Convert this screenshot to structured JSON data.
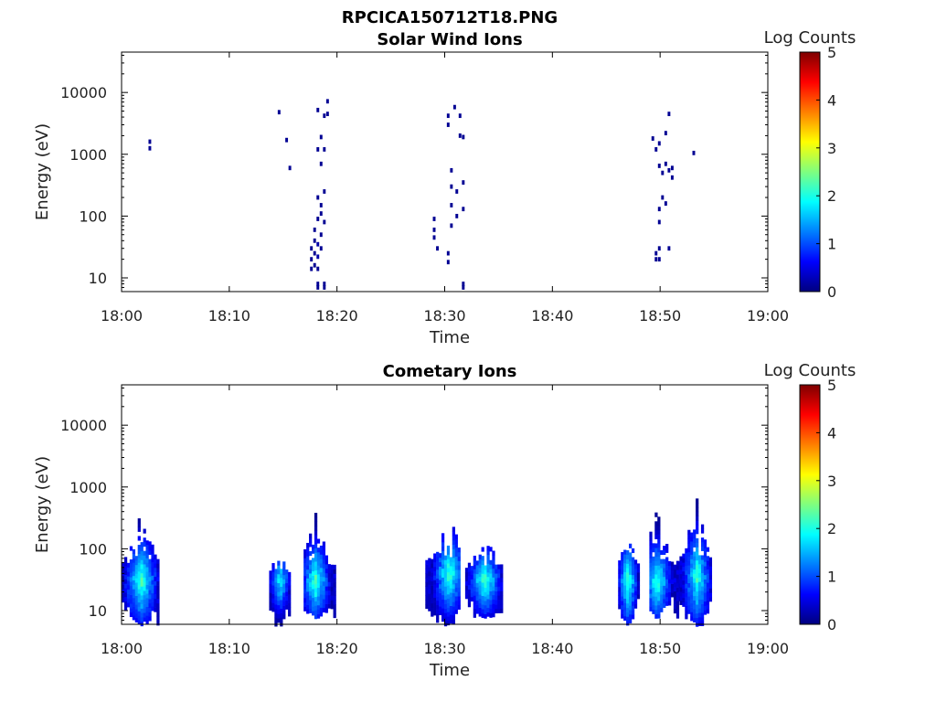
{
  "figure": {
    "title": "RPCICA150712T18.PNG"
  },
  "colorscale": {
    "stops": [
      "#00007f",
      "#0000ff",
      "#007fff",
      "#00ffff",
      "#7fff7f",
      "#ffff00",
      "#ff7f00",
      "#ff0000",
      "#7f0000"
    ]
  },
  "chart_data": [
    {
      "type": "heatmap",
      "title": "Solar Wind Ions",
      "xlabel": "Time",
      "ylabel": "Energy (eV)",
      "x_ticks": [
        "18:00",
        "18:10",
        "18:20",
        "18:30",
        "18:40",
        "18:50",
        "19:00"
      ],
      "xlim": [
        "18:00",
        "19:00"
      ],
      "y_scale": "log",
      "y_ticks": [
        "10",
        "100",
        "1000",
        "10000"
      ],
      "ylim": [
        6,
        45000
      ],
      "colorbar": {
        "label": "Log Counts",
        "ticks": [
          "0",
          "1",
          "2",
          "3",
          "4",
          "5"
        ],
        "range": [
          0,
          5
        ]
      },
      "grid": false,
      "cells": [
        [
          "18:02.5",
          1600,
          0.1
        ],
        [
          "18:02.5",
          1250,
          0.1
        ],
        [
          "18:14.5",
          4800,
          0.1
        ],
        [
          "18:15.2",
          1700,
          0.1
        ],
        [
          "18:15.5",
          600,
          0.1
        ],
        [
          "18:17.5",
          30,
          0.1
        ],
        [
          "18:17.5",
          20,
          0.1
        ],
        [
          "18:17.5",
          14,
          0.1
        ],
        [
          "18:17.8",
          40,
          0.1
        ],
        [
          "18:17.8",
          25,
          0.1
        ],
        [
          "18:17.8",
          16,
          0.1
        ],
        [
          "18:17.8",
          60,
          0.1
        ],
        [
          "18:18.1",
          35,
          0.2
        ],
        [
          "18:18.1",
          22,
          0.2
        ],
        [
          "18:18.1",
          14,
          0.1
        ],
        [
          "18:18.1",
          90,
          0.1
        ],
        [
          "18:18.1",
          200,
          0.1
        ],
        [
          "18:18.1",
          1200,
          0.1
        ],
        [
          "18:18.1",
          5200,
          0.1
        ],
        [
          "18:18.1",
          8,
          0.1
        ],
        [
          "18:18.1",
          7,
          0.1
        ],
        [
          "18:18.4",
          50,
          0.1
        ],
        [
          "18:18.4",
          30,
          0.1
        ],
        [
          "18:18.4",
          110,
          0.1
        ],
        [
          "18:18.4",
          150,
          0.1
        ],
        [
          "18:18.4",
          700,
          0.1
        ],
        [
          "18:18.4",
          1900,
          0.1
        ],
        [
          "18:18.7",
          80,
          0.1
        ],
        [
          "18:18.7",
          250,
          0.1
        ],
        [
          "18:18.7",
          1200,
          0.1
        ],
        [
          "18:18.7",
          4200,
          0.1
        ],
        [
          "18:18.7",
          8,
          0.1
        ],
        [
          "18:18.7",
          7,
          0.1
        ],
        [
          "18:19.0",
          7200,
          0.1
        ],
        [
          "18:19.0",
          4500,
          0.1
        ],
        [
          "18:28.9",
          90,
          0.1
        ],
        [
          "18:28.9",
          60,
          0.1
        ],
        [
          "18:28.9",
          45,
          0.1
        ],
        [
          "18:29.2",
          30,
          0.1
        ],
        [
          "18:30.2",
          25,
          0.1
        ],
        [
          "18:30.2",
          18,
          0.1
        ],
        [
          "18:30.2",
          3000,
          0.1
        ],
        [
          "18:30.2",
          4200,
          0.1
        ],
        [
          "18:30.5",
          70,
          0.1
        ],
        [
          "18:30.5",
          150,
          0.1
        ],
        [
          "18:30.5",
          300,
          0.1
        ],
        [
          "18:30.5",
          550,
          0.1
        ],
        [
          "18:30.8",
          5800,
          0.1
        ],
        [
          "18:31.0",
          100,
          0.1
        ],
        [
          "18:31.0",
          250,
          0.1
        ],
        [
          "18:31.3",
          2000,
          0.1
        ],
        [
          "18:31.3",
          4200,
          0.1
        ],
        [
          "18:31.6",
          8,
          0.1
        ],
        [
          "18:31.6",
          7,
          0.1
        ],
        [
          "18:31.6",
          130,
          0.1
        ],
        [
          "18:31.6",
          350,
          0.1
        ],
        [
          "18:31.6",
          1900,
          0.1
        ],
        [
          "18:49.2",
          1800,
          0.1
        ],
        [
          "18:49.5",
          20,
          0.1
        ],
        [
          "18:49.5",
          25,
          0.1
        ],
        [
          "18:49.5",
          1200,
          0.1
        ],
        [
          "18:49.8",
          30,
          0.1
        ],
        [
          "18:49.8",
          20,
          0.1
        ],
        [
          "18:49.8",
          80,
          0.1
        ],
        [
          "18:49.8",
          130,
          0.1
        ],
        [
          "18:49.8",
          650,
          0.1
        ],
        [
          "18:49.8",
          1500,
          0.1
        ],
        [
          "18:50.1",
          200,
          0.1
        ],
        [
          "18:50.1",
          500,
          0.1
        ],
        [
          "18:50.4",
          160,
          0.1
        ],
        [
          "18:50.4",
          2200,
          0.1
        ],
        [
          "18:50.4",
          700,
          0.1
        ],
        [
          "18:50.7",
          30,
          0.1
        ],
        [
          "18:50.7",
          550,
          0.1
        ],
        [
          "18:50.7",
          4500,
          0.1
        ],
        [
          "18:51.0",
          600,
          0.1
        ],
        [
          "18:51.0",
          420,
          0.1
        ],
        [
          "18:53.0",
          1050,
          0.1
        ]
      ]
    },
    {
      "type": "heatmap",
      "title": "Cometary Ions",
      "xlabel": "Time",
      "ylabel": "Energy (eV)",
      "x_ticks": [
        "18:00",
        "18:10",
        "18:20",
        "18:30",
        "18:40",
        "18:50",
        "19:00"
      ],
      "xlim": [
        "18:00",
        "19:00"
      ],
      "y_scale": "log",
      "y_ticks": [
        "10",
        "100",
        "1000",
        "10000"
      ],
      "ylim": [
        6,
        45000
      ],
      "colorbar": {
        "label": "Log Counts",
        "ticks": [
          "0",
          "1",
          "2",
          "3",
          "4",
          "5"
        ],
        "range": [
          0,
          5
        ]
      },
      "grid": false,
      "bursts": [
        {
          "start": "18:00.0",
          "end": "18:03.3",
          "peak": "18:01.7",
          "emin": 6,
          "emax": 450,
          "core": 30,
          "intensity": 1.9
        },
        {
          "start": "18:13.7",
          "end": "18:15.6",
          "peak": "18:14.6",
          "emin": 6,
          "emax": 130,
          "core": 30,
          "intensity": 1.6
        },
        {
          "start": "18:16.9",
          "end": "18:19.7",
          "peak": "18:17.9",
          "emin": 8,
          "emax": 450,
          "core": 30,
          "intensity": 1.9
        },
        {
          "start": "18:28.2",
          "end": "18:31.3",
          "peak": "18:30.3",
          "emin": 6,
          "emax": 400,
          "core": 40,
          "intensity": 1.9
        },
        {
          "start": "18:31.9",
          "end": "18:35.2",
          "peak": "18:33.6",
          "emin": 8,
          "emax": 220,
          "core": 30,
          "intensity": 1.9
        },
        {
          "start": "18:46.1",
          "end": "18:48.0",
          "peak": "18:46.9",
          "emin": 6,
          "emax": 500,
          "core": 30,
          "intensity": 1.9
        },
        {
          "start": "18:49.0",
          "end": "18:51.8",
          "peak": "18:49.6",
          "emin": 8,
          "emax": 480,
          "core": 30,
          "intensity": 1.8
        },
        {
          "start": "18:51.8",
          "end": "18:54.6",
          "peak": "18:53.3",
          "emin": 6,
          "emax": 750,
          "core": 35,
          "intensity": 1.8
        }
      ]
    }
  ]
}
